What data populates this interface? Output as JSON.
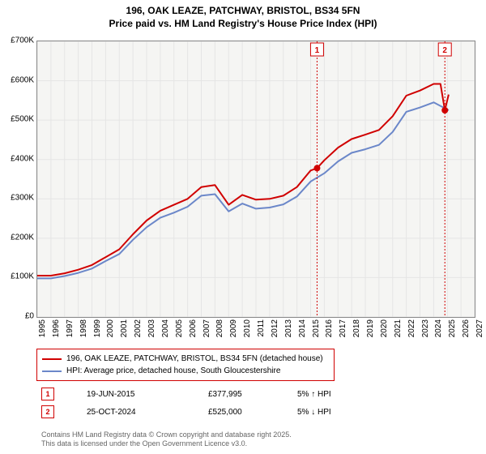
{
  "title": {
    "line1": "196, OAK LEAZE, PATCHWAY, BRISTOL, BS34 5FN",
    "line2": "Price paid vs. HM Land Registry's House Price Index (HPI)",
    "fontsize": 12,
    "color": "#000000"
  },
  "chart": {
    "type": "line",
    "background_color": "#f5f5f3",
    "plot_border_color": "#888888",
    "xlim": [
      1995,
      2027
    ],
    "ylim": [
      0,
      700000
    ],
    "ytick_step": 100000,
    "yticks": [
      {
        "v": 0,
        "label": "£0"
      },
      {
        "v": 100000,
        "label": "£100K"
      },
      {
        "v": 200000,
        "label": "£200K"
      },
      {
        "v": 300000,
        "label": "£300K"
      },
      {
        "v": 400000,
        "label": "£400K"
      },
      {
        "v": 500000,
        "label": "£500K"
      },
      {
        "v": 600000,
        "label": "£600K"
      },
      {
        "v": 700000,
        "label": "£700K"
      }
    ],
    "xticks": [
      1995,
      1996,
      1997,
      1998,
      1999,
      2000,
      2001,
      2002,
      2003,
      2004,
      2005,
      2006,
      2007,
      2008,
      2009,
      2010,
      2011,
      2012,
      2013,
      2014,
      2015,
      2016,
      2017,
      2018,
      2019,
      2020,
      2021,
      2022,
      2023,
      2024,
      2025,
      2026,
      2027
    ],
    "grid_color": "#e5e5e5",
    "label_fontsize": 10,
    "markers": [
      {
        "n": "1",
        "year": 2015.47,
        "value": 377995,
        "color": "#d00000"
      },
      {
        "n": "2",
        "year": 2024.82,
        "value": 525000,
        "color": "#d00000"
      }
    ],
    "marker_dot_color": "#d00000",
    "marker_badge_border": "#d00000",
    "series": [
      {
        "name": "price_paid",
        "label": "196, OAK LEAZE, PATCHWAY, BRISTOL, BS34 5FN (detached house)",
        "color": "#d00000",
        "line_width": 2,
        "data": [
          [
            1995,
            105000
          ],
          [
            1996,
            105000
          ],
          [
            1997,
            111000
          ],
          [
            1998,
            120000
          ],
          [
            1999,
            132000
          ],
          [
            2000,
            152000
          ],
          [
            2001,
            172000
          ],
          [
            2002,
            210000
          ],
          [
            2003,
            245000
          ],
          [
            2004,
            270000
          ],
          [
            2005,
            285000
          ],
          [
            2006,
            300000
          ],
          [
            2007,
            330000
          ],
          [
            2008,
            335000
          ],
          [
            2009,
            285000
          ],
          [
            2010,
            310000
          ],
          [
            2011,
            298000
          ],
          [
            2012,
            300000
          ],
          [
            2013,
            308000
          ],
          [
            2014,
            330000
          ],
          [
            2015,
            372000
          ],
          [
            2015.47,
            377995
          ],
          [
            2016,
            398000
          ],
          [
            2017,
            430000
          ],
          [
            2018,
            452000
          ],
          [
            2019,
            463000
          ],
          [
            2020,
            475000
          ],
          [
            2021,
            510000
          ],
          [
            2022,
            562000
          ],
          [
            2023,
            575000
          ],
          [
            2024,
            592000
          ],
          [
            2024.5,
            592000
          ],
          [
            2024.82,
            525000
          ],
          [
            2025.1,
            565000
          ]
        ]
      },
      {
        "name": "hpi",
        "label": "HPI: Average price, detached house, South Gloucestershire",
        "color": "#6b87c9",
        "line_width": 2,
        "data": [
          [
            1995,
            98000
          ],
          [
            1996,
            98000
          ],
          [
            1997,
            104000
          ],
          [
            1998,
            112000
          ],
          [
            1999,
            123000
          ],
          [
            2000,
            142000
          ],
          [
            2001,
            160000
          ],
          [
            2002,
            196000
          ],
          [
            2003,
            228000
          ],
          [
            2004,
            252000
          ],
          [
            2005,
            265000
          ],
          [
            2006,
            280000
          ],
          [
            2007,
            308000
          ],
          [
            2008,
            312000
          ],
          [
            2009,
            268000
          ],
          [
            2010,
            288000
          ],
          [
            2011,
            275000
          ],
          [
            2012,
            278000
          ],
          [
            2013,
            286000
          ],
          [
            2014,
            306000
          ],
          [
            2015,
            344000
          ],
          [
            2016,
            365000
          ],
          [
            2017,
            395000
          ],
          [
            2018,
            417000
          ],
          [
            2019,
            426000
          ],
          [
            2020,
            437000
          ],
          [
            2021,
            470000
          ],
          [
            2022,
            521000
          ],
          [
            2023,
            532000
          ],
          [
            2024,
            545000
          ],
          [
            2025.1,
            525000
          ]
        ]
      }
    ]
  },
  "legend": {
    "border_color": "#d00000",
    "items": [
      {
        "color": "#d00000",
        "text": "196, OAK LEAZE, PATCHWAY, BRISTOL, BS34 5FN (detached house)"
      },
      {
        "color": "#6b87c9",
        "text": "HPI: Average price, detached house, South Gloucestershire"
      }
    ]
  },
  "transactions": [
    {
      "n": "1",
      "date": "19-JUN-2015",
      "price": "£377,995",
      "delta": "5% ↑ HPI"
    },
    {
      "n": "2",
      "date": "25-OCT-2024",
      "price": "£525,000",
      "delta": "5% ↓ HPI"
    }
  ],
  "footer": {
    "line1": "Contains HM Land Registry data © Crown copyright and database right 2025.",
    "line2": "This data is licensed under the Open Government Licence v3.0."
  }
}
